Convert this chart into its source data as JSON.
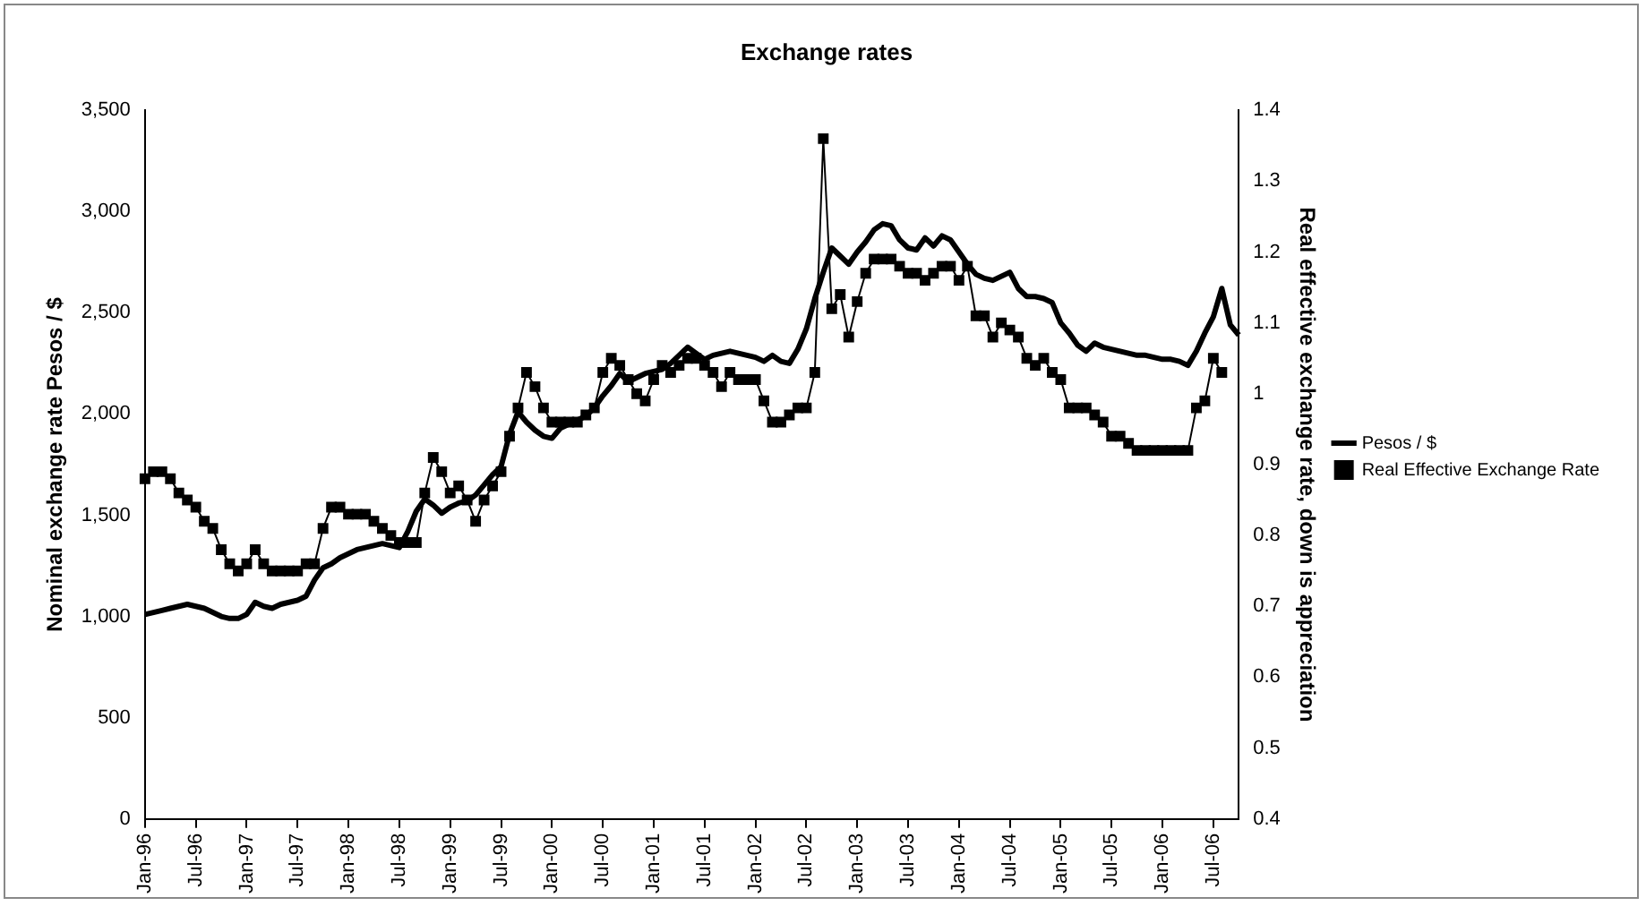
{
  "chart_data": {
    "type": "line",
    "title": "Exchange rates",
    "ylabel": "Nominal exchange rate Pesos / $",
    "y2label": "Real effective exchange rate, down is appreciation",
    "categories": [
      "Jan-96",
      null,
      null,
      null,
      null,
      null,
      "Jul-96",
      null,
      null,
      null,
      null,
      null,
      "Jan-97",
      null,
      null,
      null,
      null,
      null,
      "Jul-97",
      null,
      null,
      null,
      null,
      null,
      "Jan-98",
      null,
      null,
      null,
      null,
      null,
      "Jul-98",
      null,
      null,
      null,
      null,
      null,
      "Jan-99",
      null,
      null,
      null,
      null,
      null,
      "Jul-99",
      null,
      null,
      null,
      null,
      null,
      "Jan-00",
      null,
      null,
      null,
      null,
      null,
      "Jul-00",
      null,
      null,
      null,
      null,
      null,
      "Jan-01",
      null,
      null,
      null,
      null,
      null,
      "Jul-01",
      null,
      null,
      null,
      null,
      null,
      "Jan-02",
      null,
      null,
      null,
      null,
      null,
      "Jul-02",
      null,
      null,
      null,
      null,
      null,
      "Jan-03",
      null,
      null,
      null,
      null,
      null,
      "Jul-03",
      null,
      null,
      null,
      null,
      null,
      "Jan-04",
      null,
      null,
      null,
      null,
      null,
      "Jul-04",
      null,
      null,
      null,
      null,
      null,
      "Jan-05",
      null,
      null,
      null,
      null,
      null,
      "Jul-05",
      null,
      null,
      null,
      null,
      null,
      "Jan-06",
      null,
      null,
      null,
      null,
      null,
      "Jul-06",
      null,
      null,
      null
    ],
    "series": [
      {
        "name": "Pesos / $",
        "color": "#000000",
        "marker": "none",
        "values": [
          1010,
          1020,
          1030,
          1040,
          1050,
          1060,
          1050,
          1040,
          1020,
          1000,
          990,
          990,
          1010,
          1070,
          1050,
          1040,
          1060,
          1070,
          1080,
          1100,
          1180,
          1240,
          1260,
          1290,
          1310,
          1330,
          1340,
          1350,
          1360,
          1350,
          1340,
          1420,
          1520,
          1580,
          1550,
          1510,
          1540,
          1560,
          1570,
          1600,
          1650,
          1700,
          1740,
          1900,
          2010,
          1960,
          1920,
          1890,
          1880,
          1930,
          1950,
          1970,
          1990,
          2030,
          2090,
          2140,
          2200,
          2160,
          2180,
          2200,
          2210,
          2220,
          2250,
          2290,
          2330,
          2300,
          2270,
          2290,
          2300,
          2310,
          2300,
          2290,
          2280,
          2260,
          2290,
          2260,
          2250,
          2320,
          2420,
          2570,
          2700,
          2820,
          2780,
          2740,
          2800,
          2850,
          2910,
          2940,
          2930,
          2860,
          2820,
          2810,
          2870,
          2830,
          2880,
          2860,
          2800,
          2740,
          2690,
          2670,
          2660,
          2680,
          2700,
          2620,
          2580,
          2580,
          2570,
          2550,
          2450,
          2400,
          2340,
          2310,
          2350,
          2330,
          2320,
          2310,
          2300,
          2290,
          2290,
          2280,
          2270,
          2270,
          2260,
          2240,
          2310,
          2400,
          2480,
          2620,
          2440,
          2390
        ]
      },
      {
        "name": "Real Effective Exchange Rate",
        "color": "#000000",
        "marker": "square",
        "axis": "y2",
        "values": [
          0.88,
          0.89,
          0.89,
          0.88,
          0.86,
          0.85,
          0.84,
          0.82,
          0.81,
          0.78,
          0.76,
          0.75,
          0.76,
          0.78,
          0.76,
          0.75,
          0.75,
          0.75,
          0.75,
          0.76,
          0.76,
          0.81,
          0.84,
          0.84,
          0.83,
          0.83,
          0.83,
          0.82,
          0.81,
          0.8,
          0.79,
          0.79,
          0.79,
          0.86,
          0.91,
          0.89,
          0.86,
          0.87,
          0.85,
          0.82,
          0.85,
          0.87,
          0.89,
          0.94,
          0.98,
          1.03,
          1.01,
          0.98,
          0.96,
          0.96,
          0.96,
          0.96,
          0.97,
          0.98,
          1.03,
          1.05,
          1.04,
          1.02,
          1.0,
          0.99,
          1.02,
          1.04,
          1.03,
          1.04,
          1.05,
          1.05,
          1.04,
          1.03,
          1.01,
          1.03,
          1.02,
          1.02,
          1.02,
          0.99,
          0.96,
          0.96,
          0.97,
          0.98,
          0.98,
          1.03,
          1.36,
          1.12,
          1.14,
          1.08,
          1.13,
          1.17,
          1.19,
          1.19,
          1.19,
          1.18,
          1.17,
          1.17,
          1.16,
          1.17,
          1.18,
          1.18,
          1.16,
          1.18,
          1.11,
          1.11,
          1.08,
          1.1,
          1.09,
          1.08,
          1.05,
          1.04,
          1.05,
          1.03,
          1.02,
          0.98,
          0.98,
          0.98,
          0.97,
          0.96,
          0.94,
          0.94,
          0.93,
          0.92,
          0.92,
          0.92,
          0.92,
          0.92,
          0.92,
          0.92,
          0.98,
          0.99,
          1.05,
          1.03,
          null,
          null
        ]
      }
    ],
    "ylim": [
      0,
      3500
    ],
    "yticks": [
      0,
      500,
      {
        "value": 1000,
        "label": "1,000"
      },
      {
        "value": 1500,
        "label": "1,500"
      },
      {
        "value": 2000,
        "label": "2,000"
      },
      {
        "value": 2500,
        "label": "2,500"
      },
      {
        "value": 3000,
        "label": "3,000"
      },
      {
        "value": 3500,
        "label": "3,500"
      }
    ],
    "y2lim": [
      0.4,
      1.4
    ],
    "y2ticks": [
      0.4,
      0.5,
      0.6,
      0.7,
      0.8,
      0.9,
      1,
      1.1,
      1.2,
      1.3,
      1.4
    ],
    "grid": false,
    "legend": "right",
    "line_style": "solid"
  }
}
